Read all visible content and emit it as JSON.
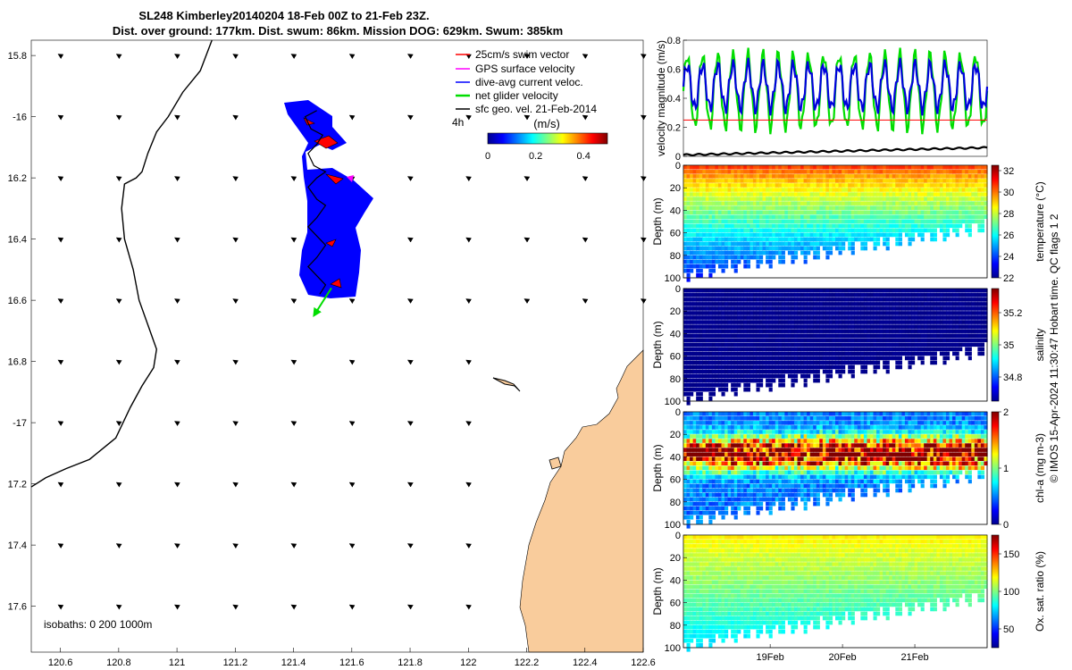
{
  "title": {
    "line1": "SL248 Kimberley20140204 18-Feb 00Z to 21-Feb 23Z.",
    "line2": "Dist. over ground: 177km. Dist. swum: 86km. Mission DOG: 629km. Swum: 385km"
  },
  "side_note": "© IMOS 15-Apr-2024 11:30:47 Hobart time. QC flags 1  2",
  "colors": {
    "land": "#f9cc9c",
    "vector": "#000000",
    "glider_patch": "#0000ff",
    "swim_vector": "#ff0000",
    "gps_vel": "#ff00ff",
    "dive_avg": "#0000ff",
    "net_vel": "#00cc00"
  },
  "chart_data": [
    {
      "id": "map",
      "type": "scatter",
      "title": "",
      "xlabel": "",
      "ylabel": "",
      "xlim": [
        120.5,
        122.6
      ],
      "ylim": [
        -17.75,
        -15.75
      ],
      "x_ticks": [
        120.6,
        120.8,
        121,
        121.2,
        121.4,
        121.6,
        121.8,
        122,
        122.2,
        122.4,
        122.6
      ],
      "x_tick_labels": [
        "120.6",
        "120.8",
        "121",
        "121.2",
        "121.4",
        "121.6",
        "121.8",
        "122",
        "122.2",
        "122.4",
        "122.6"
      ],
      "y_ticks": [
        -15.8,
        -16,
        -16.2,
        -16.4,
        -16.6,
        -16.8,
        -17,
        -17.2,
        -17.4,
        -17.6
      ],
      "y_tick_labels": [
        "15.8",
        "-16",
        "16.2",
        "16.4",
        "16.6",
        "16.8",
        "-17",
        "17.2",
        "17.4",
        "17.6"
      ],
      "legend": {
        "placement": "top-right",
        "entries": [
          "25cm/s swim vector",
          "GPS surface velocity",
          "dive-avg current veloc.",
          "net glider velocity",
          "sfc geo. vel. 21-Feb-2014"
        ],
        "colors": [
          "#ff0000",
          "#ff00ff",
          "#0000ff",
          "#00cc00",
          "#000000"
        ]
      },
      "timestamp_label": "4h",
      "colorbar": {
        "label": "(m/s)",
        "ticks": [
          0,
          0.2,
          0.4
        ],
        "range": [
          0,
          0.5
        ],
        "colormap": "jet"
      },
      "isobaths_label": "isobaths: 0   200  1000m",
      "isobath_line": [
        [
          121.12,
          -15.75
        ],
        [
          121.08,
          -15.85
        ],
        [
          121.02,
          -15.92
        ],
        [
          120.97,
          -16.0
        ],
        [
          120.93,
          -16.05
        ],
        [
          120.9,
          -16.12
        ],
        [
          120.88,
          -16.18
        ],
        [
          120.86,
          -16.2
        ],
        [
          120.82,
          -16.22
        ],
        [
          120.81,
          -16.3
        ],
        [
          120.82,
          -16.4
        ],
        [
          120.85,
          -16.5
        ],
        [
          120.87,
          -16.6
        ],
        [
          120.9,
          -16.68
        ],
        [
          120.93,
          -16.76
        ],
        [
          120.92,
          -16.82
        ],
        [
          120.88,
          -16.88
        ],
        [
          120.84,
          -16.95
        ],
        [
          120.79,
          -17.05
        ],
        [
          120.7,
          -17.12
        ],
        [
          120.62,
          -17.15
        ],
        [
          120.55,
          -17.18
        ],
        [
          120.5,
          -17.21
        ]
      ],
      "glider_track": [
        [
          121.48,
          -15.98
        ],
        [
          121.44,
          -16.0
        ],
        [
          121.46,
          -16.04
        ],
        [
          121.5,
          -16.06
        ],
        [
          121.48,
          -16.09
        ],
        [
          121.45,
          -16.12
        ],
        [
          121.47,
          -16.16
        ],
        [
          121.51,
          -16.18
        ],
        [
          121.48,
          -16.2
        ],
        [
          121.45,
          -16.23
        ],
        [
          121.48,
          -16.27
        ],
        [
          121.51,
          -16.29
        ],
        [
          121.48,
          -16.33
        ],
        [
          121.45,
          -16.36
        ],
        [
          121.48,
          -16.39
        ],
        [
          121.51,
          -16.42
        ],
        [
          121.48,
          -16.46
        ],
        [
          121.45,
          -16.49
        ],
        [
          121.48,
          -16.52
        ],
        [
          121.51,
          -16.55
        ],
        [
          121.49,
          -16.58
        ]
      ],
      "net_velocity_arrow": {
        "from": [
          121.53,
          -16.56
        ],
        "to": [
          121.47,
          -16.65
        ]
      },
      "surface_vectors_u_v": {
        "u": -0.05,
        "v": 0.03
      }
    },
    {
      "id": "velocity",
      "type": "line",
      "ylabel": "velocity magnitude (m/s)",
      "xlim": [
        17.8,
        22.0
      ],
      "ylim": [
        0,
        0.8
      ],
      "y_ticks": [
        0,
        0.2,
        0.4,
        0.6,
        0.8
      ],
      "y_tick_labels": [
        "0",
        "0.2",
        "0.4",
        "0.6",
        "0.8"
      ],
      "series": [
        {
          "color": "#00dd00",
          "mean": 0.45,
          "amp": 0.25,
          "cycles": 20
        },
        {
          "color": "#0000dd",
          "mean": 0.48,
          "amp": 0.15,
          "cycles": 20
        },
        {
          "color": "#ff0000",
          "constant": 0.25
        },
        {
          "color": "#000000",
          "start": 0.01,
          "end": 0.06
        }
      ]
    },
    {
      "id": "temperature",
      "type": "heatmap",
      "ylabel": "Depth (m)",
      "colorbar_label": "temperature (°C)",
      "ylim": [
        0,
        100
      ],
      "y_ticks": [
        0,
        20,
        40,
        60,
        80,
        100
      ],
      "y_tick_labels": [
        "0",
        "20",
        "40",
        "60",
        "80",
        "100"
      ],
      "colorbar_range": [
        22,
        32.5
      ],
      "colorbar_ticks": [
        "32",
        "30",
        "28",
        "26",
        "24",
        "22"
      ],
      "colorbar_tick_values": [
        32,
        30,
        28,
        26,
        24,
        22
      ],
      "surface_value": 30.5,
      "bottom_value": 23.5
    },
    {
      "id": "salinity",
      "type": "heatmap",
      "ylabel": "Depth (m)",
      "colorbar_label": "salinity",
      "ylim": [
        0,
        100
      ],
      "y_ticks": [
        0,
        20,
        40,
        60,
        80,
        100
      ],
      "y_tick_labels": [
        "0",
        "20",
        "40",
        "60",
        "80",
        "100"
      ],
      "colorbar_range": [
        34.65,
        35.35
      ],
      "colorbar_ticks": [
        "35.2",
        "35",
        "34.8"
      ],
      "colorbar_tick_values": [
        35.2,
        35.0,
        34.8
      ],
      "surface_value": 34.65,
      "bottom_value": 34.65
    },
    {
      "id": "chla",
      "type": "heatmap",
      "ylabel": "Depth (m)",
      "colorbar_label": "chl-a (mg m-3)",
      "ylim": [
        0,
        100
      ],
      "y_ticks": [
        0,
        20,
        40,
        60,
        80,
        100
      ],
      "y_tick_labels": [
        "0",
        "20",
        "40",
        "60",
        "80",
        "100"
      ],
      "colorbar_range": [
        0,
        2
      ],
      "colorbar_ticks": [
        "2",
        "1",
        "0"
      ],
      "colorbar_tick_values": [
        2,
        1,
        0
      ],
      "surface_value": 0.6,
      "bottom_value": 0.8
    },
    {
      "id": "oxygen",
      "type": "heatmap",
      "ylabel": "Depth (m)",
      "colorbar_label": "Ox. sat. ratio (%)",
      "ylim": [
        0,
        100
      ],
      "y_ticks": [
        0,
        20,
        40,
        60,
        80,
        100
      ],
      "y_tick_labels": [
        "0",
        "20",
        "40",
        "60",
        "80",
        "100"
      ],
      "colorbar_range": [
        25,
        175
      ],
      "colorbar_ticks": [
        "150",
        "100",
        "50"
      ],
      "colorbar_tick_values": [
        150,
        100,
        50
      ],
      "surface_value": 120,
      "bottom_value": 75,
      "x_ticks": [
        19,
        20,
        21
      ],
      "x_tick_labels": [
        "19Feb",
        "20Feb",
        "21Feb"
      ]
    }
  ]
}
